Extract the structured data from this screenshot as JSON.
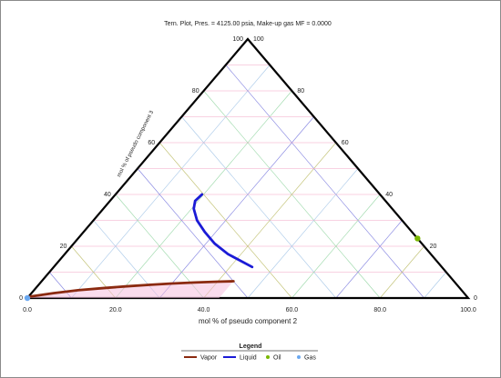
{
  "chart_data": {
    "type": "ternary",
    "title": "Tern. Plot, Pres. = 4125.00 psia, Make-up gas MF = 0.0000",
    "xlabel": "mol % of pseudo component 2",
    "left_axis_label": "mol % of pseudo component 3",
    "bottom_ticks": [
      "0.0",
      "20.0",
      "40.0",
      "60.0",
      "80.0",
      "100.0"
    ],
    "left_ticks": [
      "0",
      "20",
      "40",
      "60",
      "80",
      "100"
    ],
    "right_ticks": [
      "100",
      "80",
      "60",
      "40",
      "20",
      "0"
    ],
    "legend_title": "Legend",
    "legend": [
      {
        "label": "Vapor",
        "color": "#8b2a10",
        "kind": "line"
      },
      {
        "label": "Liquid",
        "color": "#1b1bd6",
        "kind": "line"
      },
      {
        "label": "Oil",
        "color": "#7ab800",
        "kind": "dot"
      },
      {
        "label": "Gas",
        "color": "#6aa8f0",
        "kind": "dot"
      }
    ],
    "grid_colors": {
      "horizontal": [
        "#f2a6c6",
        "#f2a6c6",
        "#f2a6c6",
        "#f2a6c6",
        "#f2a6c6",
        "#f2a6c6",
        "#f2a6c6",
        "#f2a6c6",
        "#f2a6c6"
      ],
      "rising": [
        "#a8c8e8",
        "#9ad8a8",
        "#8080e0",
        "#c0c070",
        "#a8c8e8",
        "#9ad8a8",
        "#8080e0",
        "#c0c070",
        "#a8c8e8"
      ],
      "falling": [
        "#8080e0",
        "#9ad8a8",
        "#a8c8e8",
        "#c0c070",
        "#8080e0",
        "#9ad8a8",
        "#a8c8e8",
        "#c0c070",
        "#8080e0"
      ]
    },
    "series": [
      {
        "name": "Vapor",
        "color": "#8b2a10",
        "points": [
          [
            0,
            0.5
          ],
          [
            5,
            1.9
          ],
          [
            10,
            3.0
          ],
          [
            15,
            3.8
          ],
          [
            20,
            4.5
          ],
          [
            25,
            5.1
          ],
          [
            30,
            5.6
          ],
          [
            35,
            6.0
          ],
          [
            40,
            6.3
          ],
          [
            43.5,
            6.5
          ]
        ]
      },
      {
        "name": "Liquid",
        "color": "#1b1bd6",
        "points": [
          [
            45,
            12
          ],
          [
            37,
            17
          ],
          [
            32,
            21
          ],
          [
            27.5,
            25.5
          ],
          [
            23.5,
            30
          ],
          [
            20.5,
            34.5
          ],
          [
            19.3,
            37.5
          ],
          [
            19.6,
            40
          ]
        ]
      },
      {
        "name": "Oil",
        "color": "#7ab800",
        "marker": true,
        "points": [
          [
            77,
            23
          ]
        ]
      },
      {
        "name": "Gas",
        "color": "#6aa8f0",
        "marker": true,
        "points": [
          [
            0,
            0
          ]
        ]
      }
    ]
  }
}
